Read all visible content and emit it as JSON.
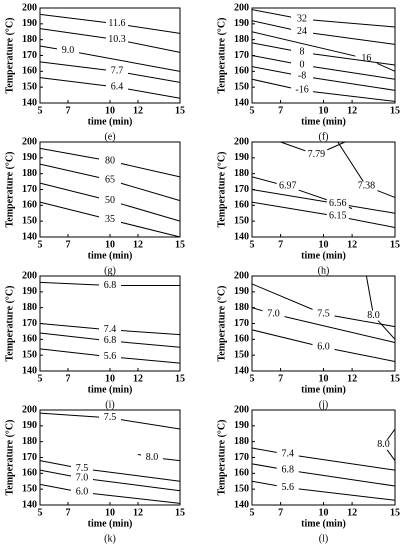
{
  "chart_data": [
    {
      "type": "contour",
      "caption": "(e)",
      "xlabel": "time (min)",
      "ylabel": "Temperature (°C)",
      "xlim": [
        5,
        15
      ],
      "ylim": [
        140,
        200
      ],
      "xticks": [
        5,
        7,
        10,
        12,
        15
      ],
      "yticks": [
        140,
        150,
        160,
        170,
        180,
        190,
        200
      ],
      "contours": [
        {
          "level": 11.6,
          "x": [
            5,
            10.5,
            15
          ],
          "y": [
            196,
            190,
            184
          ]
        },
        {
          "level": 10.3,
          "x": [
            5,
            10.5,
            15
          ],
          "y": [
            187,
            180,
            172
          ]
        },
        {
          "level": 9,
          "level_label": "9.0",
          "x": [
            5,
            7,
            15
          ],
          "y": [
            176,
            173,
            160
          ]
        },
        {
          "level": 7.7,
          "x": [
            5,
            10.5,
            15
          ],
          "y": [
            166,
            160,
            153
          ]
        },
        {
          "level": 6.4,
          "x": [
            5,
            10.5,
            15
          ],
          "y": [
            156,
            150,
            143
          ]
        }
      ]
    },
    {
      "type": "contour",
      "caption": "(f)",
      "xlabel": "time (min)",
      "ylabel": "Temperature (°C)",
      "xlim": [
        5,
        15
      ],
      "ylim": [
        140,
        200
      ],
      "xticks": [
        5,
        7,
        10,
        12,
        15
      ],
      "yticks": [
        140,
        150,
        160,
        170,
        180,
        190,
        200
      ],
      "contours": [
        {
          "level": 32,
          "x": [
            5,
            8.5,
            15
          ],
          "y": [
            199,
            193,
            188
          ]
        },
        {
          "level": 24,
          "x": [
            5,
            8.5,
            15
          ],
          "y": [
            192,
            185,
            177
          ]
        },
        {
          "level": 16,
          "x": [
            5,
            13,
            15
          ],
          "y": [
            185,
            168,
            160
          ]
        },
        {
          "level": 8,
          "x": [
            5,
            8.5,
            15
          ],
          "y": [
            178,
            172,
            164
          ]
        },
        {
          "level": 0,
          "x": [
            5,
            8.5,
            15
          ],
          "y": [
            170,
            164,
            155
          ]
        },
        {
          "level": -8,
          "x": [
            5,
            8.5,
            15
          ],
          "y": [
            163,
            157,
            148
          ]
        },
        {
          "level": -16,
          "x": [
            5,
            8.5,
            15
          ],
          "y": [
            155,
            148,
            141
          ]
        }
      ]
    },
    {
      "type": "contour",
      "caption": "(g)",
      "xlabel": "time (min)",
      "ylabel": "Temperature (°C)",
      "xlim": [
        5,
        15
      ],
      "ylim": [
        140,
        200
      ],
      "xticks": [
        5,
        7,
        10,
        12,
        15
      ],
      "yticks": [
        140,
        150,
        160,
        170,
        180,
        190,
        200
      ],
      "contours": [
        {
          "level": 80,
          "x": [
            5,
            10,
            15
          ],
          "y": [
            196,
            188,
            178
          ]
        },
        {
          "level": 65,
          "x": [
            5,
            10,
            15
          ],
          "y": [
            186,
            176,
            163
          ]
        },
        {
          "level": 50,
          "x": [
            5,
            10,
            15
          ],
          "y": [
            174,
            163,
            150
          ]
        },
        {
          "level": 35,
          "x": [
            5,
            10,
            15
          ],
          "y": [
            162,
            151,
            140
          ]
        }
      ]
    },
    {
      "type": "contour",
      "caption": "(h)",
      "xlabel": "time (min)",
      "ylabel": "Temperature (°C)",
      "xlim": [
        5,
        15
      ],
      "ylim": [
        140,
        200
      ],
      "xticks": [
        5,
        7,
        10,
        12,
        15
      ],
      "yticks": [
        140,
        150,
        160,
        170,
        180,
        190,
        200
      ],
      "contours": [
        {
          "level": 7.79,
          "x": [
            7,
            9.5,
            11.5
          ],
          "y": [
            200,
            192,
            200
          ]
        },
        {
          "level": 6.97,
          "x": [
            5,
            7.5,
            12
          ],
          "y": [
            178,
            172,
            158
          ]
        },
        {
          "level": 7.38,
          "x": [
            11,
            13,
            15
          ],
          "y": [
            200,
            172,
            165
          ]
        },
        {
          "level": 6.56,
          "x": [
            5,
            11,
            15
          ],
          "y": [
            170,
            161,
            155
          ]
        },
        {
          "level": 6.15,
          "x": [
            5,
            11,
            15
          ],
          "y": [
            162,
            153,
            146
          ]
        }
      ]
    },
    {
      "type": "contour",
      "caption": "(i)",
      "xlabel": "time (min)",
      "ylabel": "Temperature (°C)",
      "xlim": [
        5,
        15
      ],
      "ylim": [
        140,
        200
      ],
      "xticks": [
        5,
        7,
        10,
        12,
        15
      ],
      "yticks": [
        140,
        150,
        160,
        170,
        180,
        190,
        200
      ],
      "contours": [
        {
          "level": 6.8,
          "x": [
            5,
            10,
            15
          ],
          "y": [
            196,
            194,
            194
          ]
        },
        {
          "level": 7.4,
          "x": [
            5,
            10,
            15
          ],
          "y": [
            170,
            166,
            163
          ]
        },
        {
          "level": 6.8,
          "x": [
            5,
            10,
            15
          ],
          "y": [
            164,
            159,
            155
          ]
        },
        {
          "level": 5.6,
          "x": [
            5,
            10,
            15
          ],
          "y": [
            154,
            149,
            145
          ]
        }
      ]
    },
    {
      "type": "contour",
      "caption": "(j)",
      "xlabel": "time (min)",
      "ylabel": "Temperature (°C)",
      "xlim": [
        5,
        15
      ],
      "ylim": [
        140,
        200
      ],
      "xticks": [
        5,
        7,
        10,
        12,
        15
      ],
      "yticks": [
        140,
        150,
        160,
        170,
        180,
        190,
        200
      ],
      "contours": [
        {
          "level": 7.5,
          "x": [
            5,
            10,
            15
          ],
          "y": [
            195,
            176,
            168
          ]
        },
        {
          "level": 7,
          "level_label": "7.0",
          "x": [
            5,
            6.5,
            15
          ],
          "y": [
            180,
            176,
            158
          ]
        },
        {
          "level": 8,
          "level_label": "8.0",
          "x": [
            13,
            13.5,
            15
          ],
          "y": [
            200,
            175,
            160
          ]
        },
        {
          "level": 6,
          "level_label": "6.0",
          "x": [
            5,
            10,
            15
          ],
          "y": [
            166,
            155,
            146
          ]
        }
      ]
    },
    {
      "type": "contour",
      "caption": "(k)",
      "xlabel": "time (min)",
      "ylabel": "Temperature (°C)",
      "xlim": [
        5,
        15
      ],
      "ylim": [
        140,
        200
      ],
      "xticks": [
        5,
        7,
        10,
        12,
        15
      ],
      "yticks": [
        140,
        150,
        160,
        170,
        180,
        190,
        200
      ],
      "contours": [
        {
          "level": 7.5,
          "x": [
            5,
            10,
            15
          ],
          "y": [
            198,
            195,
            188
          ]
        },
        {
          "level": 8,
          "level_label": "8.0",
          "x": [
            12,
            13,
            15
          ],
          "y": [
            172,
            170,
            168
          ]
        },
        {
          "level": 7.5,
          "x": [
            5,
            8,
            15
          ],
          "y": [
            168,
            163,
            155
          ]
        },
        {
          "level": 7,
          "level_label": "7.0",
          "x": [
            5,
            8,
            15
          ],
          "y": [
            162,
            157,
            149
          ]
        },
        {
          "level": 6,
          "level_label": "6.0",
          "x": [
            5,
            8,
            15
          ],
          "y": [
            153,
            148,
            141
          ]
        }
      ]
    },
    {
      "type": "contour",
      "caption": "(l)",
      "xlabel": "time (min)",
      "ylabel": "Temperature (°C)",
      "xlim": [
        5,
        15
      ],
      "ylim": [
        140,
        200
      ],
      "xticks": [
        5,
        7,
        10,
        12,
        15
      ],
      "yticks": [
        140,
        150,
        160,
        170,
        180,
        190,
        200
      ],
      "contours": [
        {
          "level": 8,
          "level_label": "8.0",
          "x": [
            15,
            14.2,
            15
          ],
          "y": [
            188,
            178,
            168
          ]
        },
        {
          "level": 7.4,
          "x": [
            5,
            7.5,
            15
          ],
          "y": [
            176,
            172,
            162
          ]
        },
        {
          "level": 6.8,
          "x": [
            5,
            7.5,
            15
          ],
          "y": [
            166,
            162,
            152
          ]
        },
        {
          "level": 5.6,
          "x": [
            5,
            7.5,
            15
          ],
          "y": [
            155,
            151,
            143
          ]
        }
      ]
    }
  ]
}
